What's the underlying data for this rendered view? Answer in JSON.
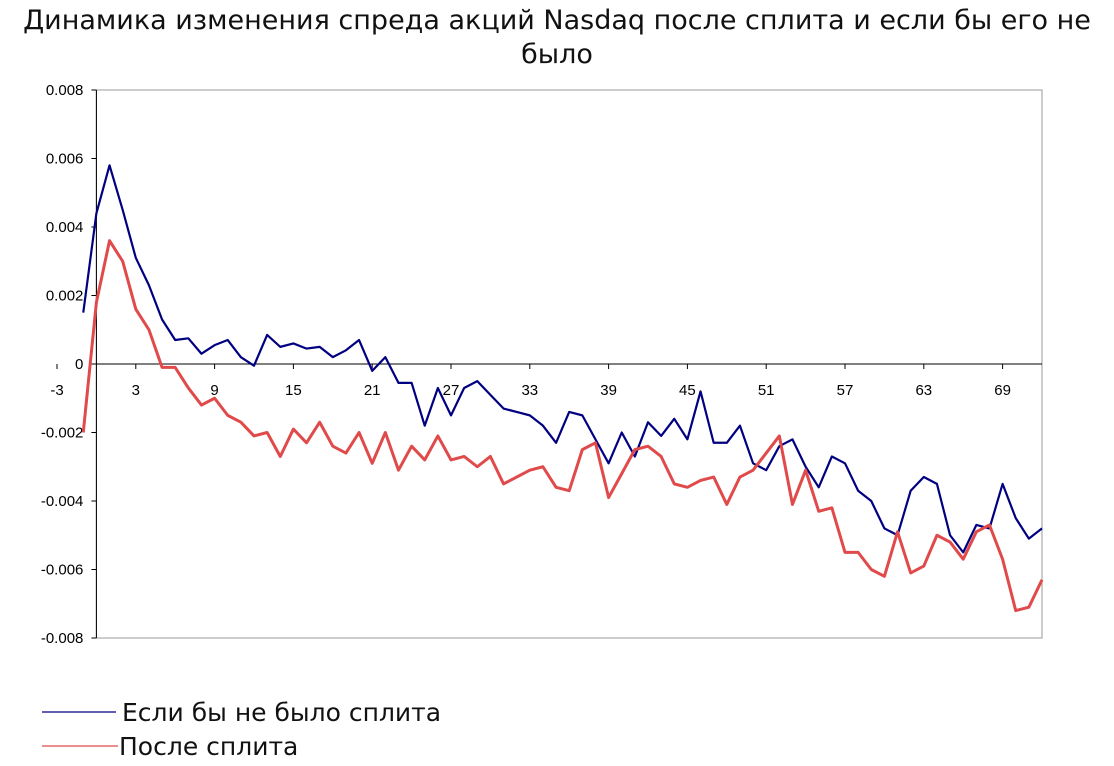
{
  "chart_data": {
    "type": "line",
    "title": "Динамика изменения спреда акций Nasdaq после сплита и если бы его не было",
    "x": [
      -1,
      0,
      1,
      2,
      3,
      4,
      5,
      6,
      7,
      8,
      9,
      10,
      11,
      12,
      13,
      14,
      15,
      16,
      17,
      18,
      19,
      20,
      21,
      22,
      23,
      24,
      25,
      26,
      27,
      28,
      29,
      30,
      31,
      32,
      33,
      34,
      35,
      36,
      37,
      38,
      39,
      40,
      41,
      42,
      43,
      44,
      45,
      46,
      47,
      48,
      49,
      50,
      51,
      52,
      53,
      54,
      55,
      56,
      57,
      58,
      59,
      60,
      61,
      62,
      63,
      64,
      65,
      66,
      67,
      68,
      69,
      70,
      71,
      72
    ],
    "series": [
      {
        "name": "Если бы не было сплита",
        "color": "#000080",
        "values": [
          0.0015,
          0.0044,
          0.0058,
          0.0045,
          0.0031,
          0.0023,
          0.0013,
          0.0007,
          0.00075,
          0.0003,
          0.00055,
          0.0007,
          0.0002,
          -5e-05,
          0.00085,
          0.0005,
          0.0006,
          0.00045,
          0.0005,
          0.0002,
          0.0004,
          0.0007,
          -0.0002,
          0.0002,
          -0.00055,
          -0.00055,
          -0.0018,
          -0.0007,
          -0.0015,
          -0.0007,
          -0.0005,
          -0.0009,
          -0.0013,
          -0.0014,
          -0.0015,
          -0.0018,
          -0.0023,
          -0.0014,
          -0.0015,
          -0.0022,
          -0.0029,
          -0.002,
          -0.0027,
          -0.0017,
          -0.0021,
          -0.0016,
          -0.0022,
          -0.0008,
          -0.0023,
          -0.0023,
          -0.0018,
          -0.0029,
          -0.0031,
          -0.0024,
          -0.0022,
          -0.003,
          -0.0036,
          -0.0027,
          -0.0029,
          -0.0037,
          -0.004,
          -0.0048,
          -0.005,
          -0.0037,
          -0.0033,
          -0.0035,
          -0.005,
          -0.0055,
          -0.0047,
          -0.0048,
          -0.0035,
          -0.0045,
          -0.0051,
          -0.0048
        ]
      },
      {
        "name": "После сплита",
        "color": "#e04a4a",
        "values": [
          -0.002,
          0.0018,
          0.0036,
          0.003,
          0.0016,
          0.001,
          -0.0001,
          -0.0001,
          -0.0007,
          -0.0012,
          -0.001,
          -0.0015,
          -0.0017,
          -0.0021,
          -0.002,
          -0.0027,
          -0.0019,
          -0.0023,
          -0.0017,
          -0.0024,
          -0.0026,
          -0.002,
          -0.0029,
          -0.002,
          -0.0031,
          -0.0024,
          -0.0028,
          -0.0021,
          -0.0028,
          -0.0027,
          -0.003,
          -0.0027,
          -0.0035,
          -0.0033,
          -0.0031,
          -0.003,
          -0.0036,
          -0.0037,
          -0.0025,
          -0.0023,
          -0.0039,
          -0.0032,
          -0.0025,
          -0.0024,
          -0.0027,
          -0.0035,
          -0.0036,
          -0.0034,
          -0.0033,
          -0.0041,
          -0.0033,
          -0.0031,
          -0.0026,
          -0.0021,
          -0.0041,
          -0.0031,
          -0.0043,
          -0.0042,
          -0.0055,
          -0.0055,
          -0.006,
          -0.0062,
          -0.0049,
          -0.0061,
          -0.0059,
          -0.005,
          -0.0052,
          -0.0057,
          -0.0049,
          -0.0047,
          -0.0057,
          -0.0072,
          -0.0071,
          -0.0063
        ]
      }
    ],
    "xlim": [
      -3,
      72
    ],
    "ylim": [
      -0.008,
      0.008
    ],
    "xticks": [
      -3,
      3,
      9,
      15,
      21,
      27,
      33,
      39,
      45,
      51,
      57,
      63,
      69
    ],
    "yticks": [
      0.008,
      0.006,
      0.004,
      0.002,
      0,
      -0.002,
      -0.004,
      -0.006,
      -0.008
    ],
    "grid": false,
    "legend": "bottom-left"
  }
}
